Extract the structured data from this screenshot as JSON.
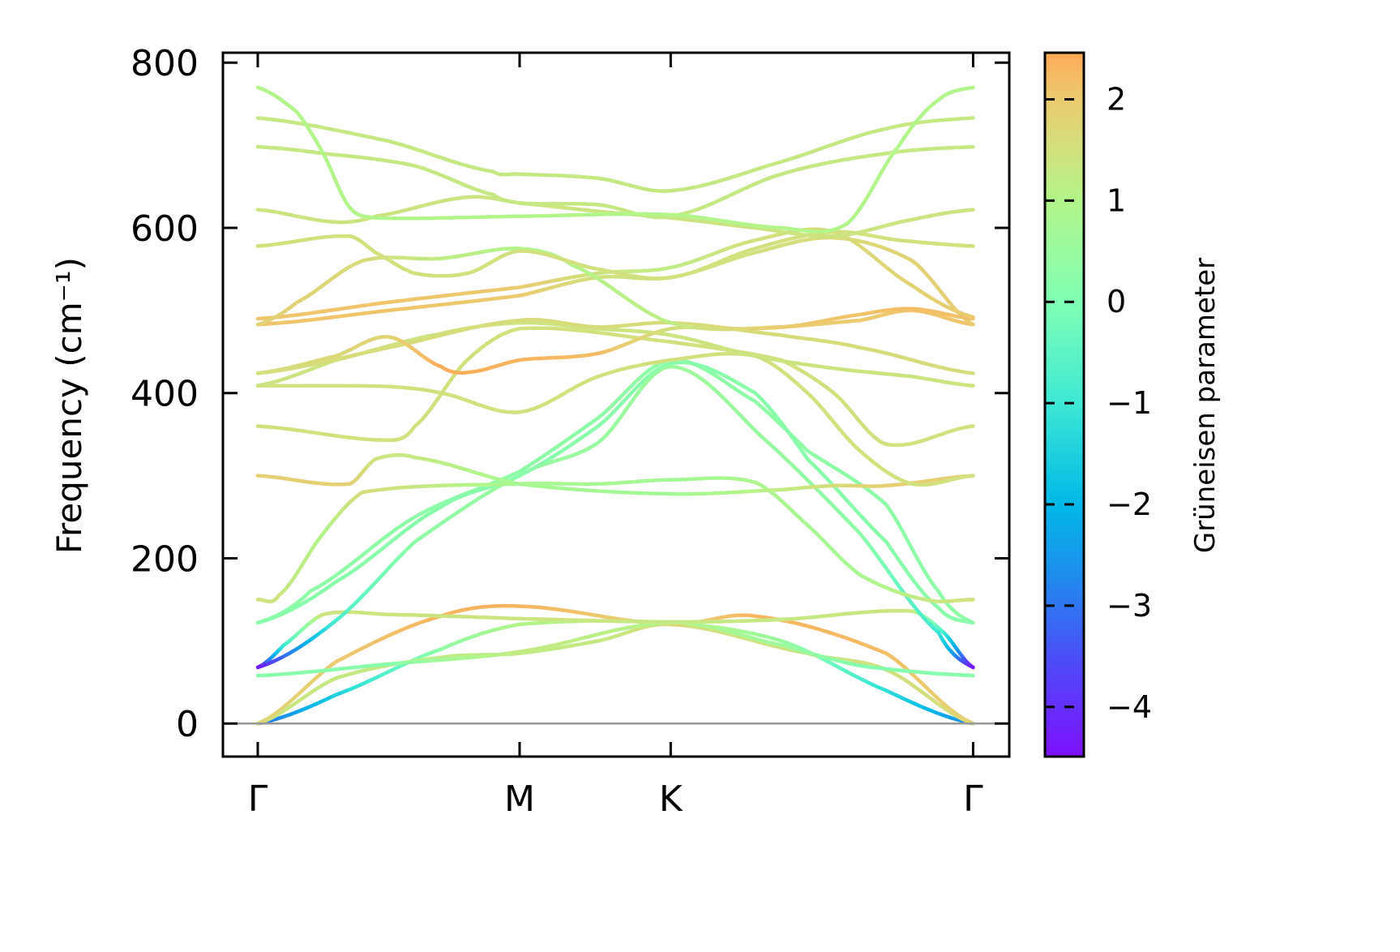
{
  "chart_data": {
    "type": "line",
    "title": "",
    "ylabel": "Frequency (cm⁻¹)",
    "xlabel": "",
    "ylim": [
      -40,
      812
    ],
    "xlim": [
      -0.133,
      2.87
    ],
    "grid": false,
    "yticks": [
      0,
      200,
      400,
      600,
      800
    ],
    "ytick_labels": [
      "0",
      "200",
      "400",
      "600",
      "800"
    ],
    "kpoints": [
      {
        "label": "Γ",
        "k": 0
      },
      {
        "label": "M",
        "k": 1
      },
      {
        "label": "K",
        "k": 1.577
      },
      {
        "label": "Γ",
        "k": 2.732
      }
    ],
    "colorbar": {
      "label": "Grüneisen parameter",
      "range": [
        -4.49,
        2.46
      ],
      "ticks": [
        2,
        1,
        0,
        -1,
        -2,
        -3,
        -4
      ],
      "tick_labels": [
        "2",
        "1",
        "0",
        "−1",
        "−2",
        "−3",
        "−4"
      ],
      "colormap": [
        {
          "v": -4.49,
          "c": "#7f10ff"
        },
        {
          "v": -3.5,
          "c": "#4a4ff8"
        },
        {
          "v": -2.6,
          "c": "#1a94ec"
        },
        {
          "v": -2.0,
          "c": "#00b8e8"
        },
        {
          "v": -1.0,
          "c": "#3de8d4"
        },
        {
          "v": 0.0,
          "c": "#80ffb4"
        },
        {
          "v": 1.0,
          "c": "#b2f58a"
        },
        {
          "v": 1.5,
          "c": "#d2e07d"
        },
        {
          "v": 2.0,
          "c": "#ebcb6f"
        },
        {
          "v": 2.46,
          "c": "#ffaa58"
        }
      ]
    },
    "zero_line_color": "#999999",
    "bands": [
      {
        "points": [
          [
            0,
            0
          ],
          [
            0.3,
            35
          ],
          [
            0.7,
            90
          ],
          [
            1,
            120
          ],
          [
            1.577,
            122
          ],
          [
            2.0,
            100
          ],
          [
            2.4,
            40
          ],
          [
            2.732,
            0
          ]
        ],
        "gamma": [
          -3.2,
          -1.5,
          0.3,
          1.0,
          1.2,
          0.5,
          -1.2,
          -2.8
        ]
      },
      {
        "points": [
          [
            0,
            0
          ],
          [
            0.3,
            55
          ],
          [
            0.7,
            80
          ],
          [
            1,
            85
          ],
          [
            1.3,
            100
          ],
          [
            1.577,
            120
          ],
          [
            2.1,
            85
          ],
          [
            2.4,
            65
          ],
          [
            2.732,
            0
          ]
        ],
        "gamma": [
          1.4,
          1.3,
          1.2,
          1.2,
          1.3,
          1.5,
          1.4,
          1.5,
          1.6
        ]
      },
      {
        "points": [
          [
            0,
            0
          ],
          [
            0.3,
            75
          ],
          [
            0.7,
            130
          ],
          [
            1,
            142
          ],
          [
            1.577,
            120
          ],
          [
            1.9,
            130
          ],
          [
            2.4,
            85
          ],
          [
            2.732,
            0
          ]
        ],
        "gamma": [
          1.7,
          2.0,
          2.3,
          2.3,
          1.8,
          2.3,
          2.2,
          1.8
        ]
      },
      {
        "points": [
          [
            0,
            58
          ],
          [
            0.5,
            72
          ],
          [
            1,
            87
          ],
          [
            1.577,
            122
          ],
          [
            2.0,
            95
          ],
          [
            2.3,
            70
          ],
          [
            2.732,
            58
          ]
        ],
        "gamma": [
          0.2,
          0.2,
          1.3,
          1.0,
          0.6,
          0.1,
          0.2
        ]
      },
      {
        "points": [
          [
            0,
            68
          ],
          [
            0.1,
            95
          ],
          [
            0.25,
            132
          ],
          [
            0.5,
            132
          ],
          [
            1,
            127
          ],
          [
            1.577,
            123
          ],
          [
            2.0,
            126
          ],
          [
            2.5,
            136
          ],
          [
            2.62,
            110
          ],
          [
            2.732,
            68
          ]
        ],
        "gamma": [
          -4.4,
          -1.0,
          1.4,
          1.4,
          1.4,
          1.3,
          1.3,
          1.4,
          -0.8,
          -4.4
        ]
      },
      {
        "points": [
          [
            0,
            68
          ],
          [
            0.3,
            125
          ],
          [
            0.6,
            220
          ],
          [
            1,
            300
          ],
          [
            1.3,
            340
          ],
          [
            1.577,
            432
          ],
          [
            1.95,
            340
          ],
          [
            2.3,
            230
          ],
          [
            2.6,
            110
          ],
          [
            2.732,
            68
          ]
        ],
        "gamma": [
          -4.4,
          -0.8,
          0.3,
          0.5,
          0.5,
          0.6,
          0.5,
          0.3,
          -1.0,
          -4.4
        ]
      },
      {
        "points": [
          [
            0,
            122
          ],
          [
            0.2,
            160
          ],
          [
            0.6,
            250
          ],
          [
            1,
            305
          ],
          [
            1.3,
            370
          ],
          [
            1.577,
            440
          ],
          [
            1.9,
            390
          ],
          [
            2.1,
            330
          ],
          [
            2.4,
            265
          ],
          [
            2.6,
            160
          ],
          [
            2.732,
            122
          ]
        ],
        "gamma": 0.3
      },
      {
        "points": [
          [
            0,
            122
          ],
          [
            0.3,
            172
          ],
          [
            0.7,
            262
          ],
          [
            1,
            300
          ],
          [
            1.3,
            360
          ],
          [
            1.577,
            436
          ],
          [
            1.9,
            400
          ],
          [
            2.1,
            320
          ],
          [
            2.4,
            220
          ],
          [
            2.6,
            140
          ],
          [
            2.732,
            122
          ]
        ],
        "gamma": 0.2
      },
      {
        "points": [
          [
            0,
            150
          ],
          [
            0.08,
            155
          ],
          [
            0.25,
            230
          ],
          [
            0.4,
            280
          ],
          [
            1,
            290
          ],
          [
            1.3,
            290
          ],
          [
            1.577,
            295
          ],
          [
            1.9,
            292
          ],
          [
            2.1,
            240
          ],
          [
            2.3,
            180
          ],
          [
            2.55,
            150
          ],
          [
            2.732,
            150
          ]
        ],
        "gamma": [
          1.5,
          1.4,
          1.0,
          1.6,
          0.8,
          0.8,
          0.7,
          0.9,
          0.8,
          0.8,
          1.3,
          1.5
        ]
      },
      {
        "points": [
          [
            0,
            300
          ],
          [
            0.35,
            290
          ],
          [
            0.45,
            320
          ],
          [
            0.6,
            322
          ],
          [
            1,
            290
          ],
          [
            1.577,
            278
          ],
          [
            2.0,
            283
          ],
          [
            2.2,
            288
          ],
          [
            2.4,
            288
          ],
          [
            2.732,
            300
          ]
        ],
        "gamma": [
          1.9,
          1.9,
          1.4,
          1.3,
          0.8,
          0.7,
          1.2,
          1.6,
          1.9,
          1.9
        ]
      },
      {
        "points": [
          [
            0,
            360
          ],
          [
            0.5,
            343
          ],
          [
            0.6,
            360
          ],
          [
            0.8,
            440
          ],
          [
            1,
            478
          ],
          [
            1.577,
            462
          ],
          [
            2.0,
            440
          ],
          [
            2.2,
            400
          ],
          [
            2.4,
            338
          ],
          [
            2.732,
            360
          ]
        ],
        "gamma": 1.5
      },
      {
        "points": [
          [
            0,
            409
          ],
          [
            0.5,
            408
          ],
          [
            0.7,
            400
          ],
          [
            1,
            377
          ],
          [
            1.3,
            420
          ],
          [
            1.577,
            440
          ],
          [
            1.9,
            445
          ],
          [
            2.1,
            400
          ],
          [
            2.3,
            330
          ],
          [
            2.5,
            290
          ],
          [
            2.732,
            300
          ]
        ],
        "gamma": 1.5
      },
      {
        "points": [
          [
            0,
            409
          ],
          [
            0.3,
            440
          ],
          [
            0.7,
            472
          ],
          [
            1,
            485
          ],
          [
            1.3,
            478
          ],
          [
            1.577,
            470
          ],
          [
            1.9,
            445
          ],
          [
            2.2,
            430
          ],
          [
            2.5,
            420
          ],
          [
            2.732,
            409
          ]
        ],
        "gamma": 1.4
      },
      {
        "points": [
          [
            0,
            424
          ],
          [
            0.5,
            455
          ],
          [
            1,
            488
          ],
          [
            1.3,
            480
          ],
          [
            1.577,
            485
          ],
          [
            2.0,
            470
          ],
          [
            2.3,
            455
          ],
          [
            2.732,
            424
          ]
        ],
        "gamma": 1.6
      },
      {
        "points": [
          [
            0,
            424
          ],
          [
            0.3,
            445
          ],
          [
            0.5,
            468
          ],
          [
            0.7,
            432
          ],
          [
            0.8,
            425
          ],
          [
            1,
            440
          ],
          [
            1.3,
            448
          ],
          [
            1.577,
            478
          ],
          [
            1.9,
            478
          ],
          [
            2.3,
            488
          ],
          [
            2.5,
            500
          ],
          [
            2.732,
            483
          ]
        ],
        "gamma": [
          1.5,
          1.7,
          1.8,
          2.4,
          2.4,
          2.3,
          2.2,
          1.5,
          1.9,
          2.0,
          2.1,
          2.1
        ]
      },
      {
        "points": [
          [
            0,
            483
          ],
          [
            0.5,
            500
          ],
          [
            1,
            518
          ],
          [
            1.3,
            540
          ],
          [
            1.577,
            540
          ],
          [
            1.9,
            570
          ],
          [
            2.2,
            588
          ],
          [
            2.5,
            560
          ],
          [
            2.732,
            483
          ]
        ],
        "gamma": [
          2.1,
          2.1,
          2.0,
          1.5,
          1.3,
          1.5,
          1.6,
          1.8,
          2.0
        ]
      },
      {
        "points": [
          [
            0,
            490
          ],
          [
            0.5,
            510
          ],
          [
            1,
            528
          ],
          [
            1.3,
            545
          ],
          [
            1.577,
            552
          ],
          [
            1.9,
            585
          ],
          [
            2.2,
            595
          ],
          [
            2.5,
            530
          ],
          [
            2.732,
            492
          ]
        ],
        "gamma": [
          2.1,
          2.1,
          2.0,
          1.4,
          1.2,
          1.5,
          1.6,
          1.8,
          2.0
        ]
      },
      {
        "points": [
          [
            0,
            483
          ],
          [
            0.15,
            510
          ],
          [
            0.4,
            560
          ],
          [
            0.7,
            563
          ],
          [
            1,
            575
          ],
          [
            1.2,
            555
          ],
          [
            1.577,
            485
          ],
          [
            2.0,
            480
          ],
          [
            2.3,
            495
          ],
          [
            2.5,
            502
          ],
          [
            2.732,
            490
          ]
        ],
        "gamma": [
          1.8,
          1.8,
          1.6,
          1.2,
          1.0,
          1.0,
          1.2,
          2.0,
          2.1,
          2.2,
          2.1
        ]
      },
      {
        "points": [
          [
            0,
            578
          ],
          [
            0.35,
            590
          ],
          [
            0.45,
            570
          ],
          [
            0.6,
            545
          ],
          [
            0.8,
            545
          ],
          [
            1,
            572
          ],
          [
            1.3,
            550
          ],
          [
            1.577,
            540
          ],
          [
            1.9,
            575
          ],
          [
            2.2,
            595
          ],
          [
            2.45,
            585
          ],
          [
            2.732,
            578
          ]
        ],
        "gamma": 1.5
      },
      {
        "points": [
          [
            0,
            622
          ],
          [
            0.3,
            607
          ],
          [
            0.45,
            614
          ],
          [
            0.8,
            637
          ],
          [
            1,
            630
          ],
          [
            1.3,
            620
          ],
          [
            1.577,
            612
          ],
          [
            1.9,
            600
          ],
          [
            2.2,
            590
          ],
          [
            2.5,
            610
          ],
          [
            2.732,
            622
          ]
        ],
        "gamma": 1.4
      },
      {
        "points": [
          [
            0,
            698
          ],
          [
            0.25,
            690
          ],
          [
            0.6,
            675
          ],
          [
            0.9,
            640
          ],
          [
            1,
            630
          ],
          [
            1.3,
            628
          ],
          [
            1.577,
            614
          ],
          [
            2.0,
            665
          ],
          [
            2.4,
            690
          ],
          [
            2.732,
            698
          ]
        ],
        "gamma": 1.3
      },
      {
        "points": [
          [
            0,
            733
          ],
          [
            0.5,
            705
          ],
          [
            0.9,
            668
          ],
          [
            1,
            665
          ],
          [
            1.3,
            660
          ],
          [
            1.577,
            645
          ],
          [
            2.0,
            680
          ],
          [
            2.4,
            720
          ],
          [
            2.732,
            733
          ]
        ],
        "gamma": 1.3
      },
      {
        "points": [
          [
            0,
            770
          ],
          [
            0.15,
            740
          ],
          [
            0.25,
            690
          ],
          [
            0.35,
            625
          ],
          [
            0.45,
            612
          ],
          [
            1,
            614
          ],
          [
            1.577,
            616
          ],
          [
            2.0,
            600
          ],
          [
            2.25,
            605
          ],
          [
            2.45,
            700
          ],
          [
            2.6,
            755
          ],
          [
            2.732,
            770
          ]
        ],
        "gamma": 1.0
      }
    ]
  }
}
